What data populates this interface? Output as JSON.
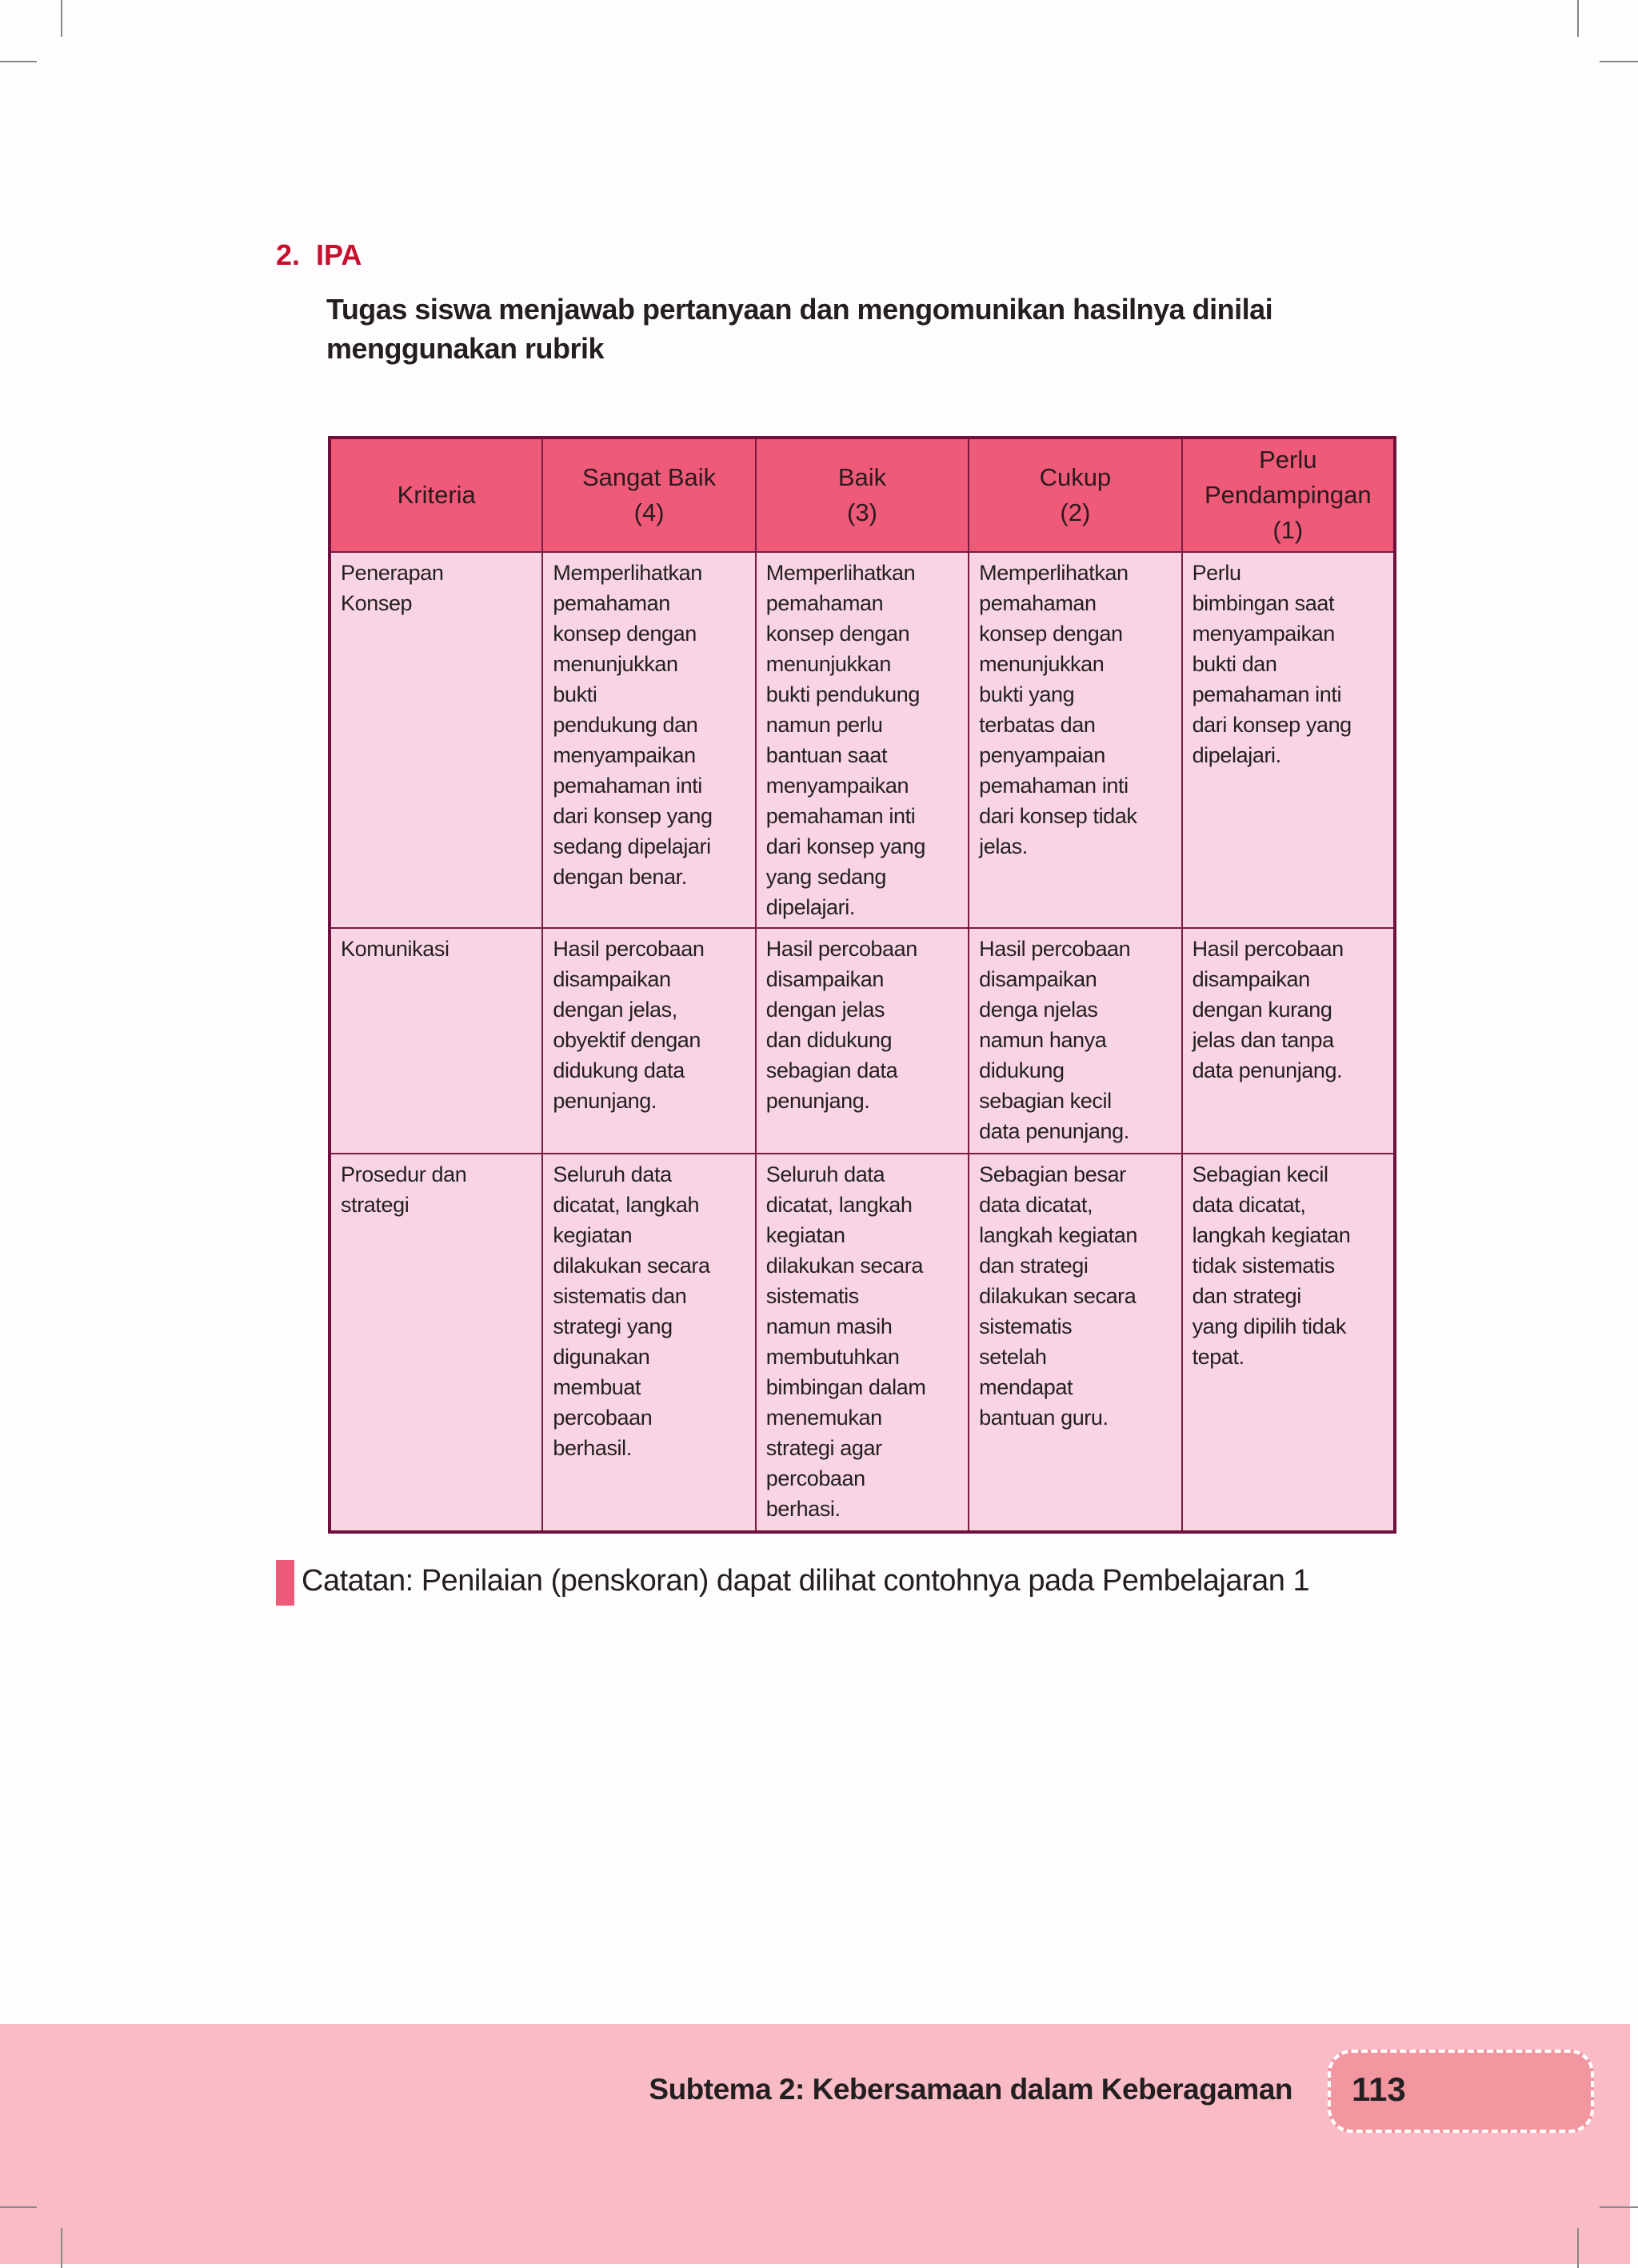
{
  "section": {
    "number": "2.",
    "title": "IPA"
  },
  "instruction": "Tugas siswa menjawab pertanyaan dan mengomunikan hasilnya dinilai menggunakan rubrik",
  "rubric": {
    "headers": [
      "Kriteria",
      "Sangat Baik\n(4)",
      "Baik\n(3)",
      "Cukup\n(2)",
      "Perlu\nPendampingan\n(1)"
    ],
    "rows": [
      [
        "Penerapan\nKonsep",
        "Memperlihatkan\npemahaman\nkonsep dengan\nmenunjukkan\nbukti\npendukung dan\nmenyampaikan\npemahaman inti\ndari konsep yang\nsedang dipelajari\ndengan benar.",
        "Memperlihatkan\npemahaman\nkonsep dengan\nmenunjukkan\nbukti pendukung\nnamun perlu\nbantuan saat\nmenyampaikan\npemahaman inti\ndari konsep yang\nyang sedang\ndipelajari.",
        "Memperlihatkan\npemahaman\nkonsep dengan\nmenunjukkan\nbukti yang\nterbatas dan\npenyampaian\npemahaman inti\ndari konsep tidak\njelas.",
        "Perlu\nbimbingan saat\nmenyampaikan\nbukti dan\npemahaman inti\ndari konsep yang\ndipelajari."
      ],
      [
        "Komunikasi",
        "Hasil percobaan\ndisampaikan\ndengan jelas,\nobyektif dengan\ndidukung data\npenunjang.",
        "Hasil percobaan\ndisampaikan\ndengan jelas\ndan didukung\nsebagian data\npenunjang.",
        "Hasil percobaan\ndisampaikan\ndenga njelas\nnamun hanya\ndidukung\nsebagian kecil\ndata penunjang.",
        "Hasil percobaan\ndisampaikan\ndengan kurang\njelas dan tanpa\ndata penunjang."
      ],
      [
        "Prosedur dan\nstrategi",
        "Seluruh data\ndicatat, langkah\nkegiatan\ndilakukan secara\nsistematis dan\nstrategi yang\ndigunakan\nmembuat\npercobaan\nberhasil.",
        "Seluruh data\ndicatat, langkah\nkegiatan\ndilakukan secara\nsistematis\nnamun masih\nmembutuhkan\nbimbingan dalam\nmenemukan\nstrategi agar\npercobaan\nberhasi.",
        "Sebagian besar\ndata dicatat,\nlangkah kegiatan\ndan strategi\ndilakukan secara\nsistematis\nsetelah\nmendapat\nbantuan guru.",
        "Sebagian kecil\ndata dicatat,\nlangkah kegiatan\ntidak sistematis\ndan strategi\nyang dipilih tidak\ntepat."
      ]
    ]
  },
  "note": "Catatan: Penilaian (penskoran) dapat dilihat contohnya pada Pembelajaran 1",
  "footer": {
    "subtheme": "Subtema 2: Kebersamaan dalam Keberagaman",
    "page_number": "113"
  },
  "colors": {
    "accent_red": "#c8102e",
    "header_pink": "#ee5a77",
    "cell_pink": "#f9d4e4",
    "border_maroon": "#6e0f3c",
    "footer_pink": "#f9bcc6"
  }
}
